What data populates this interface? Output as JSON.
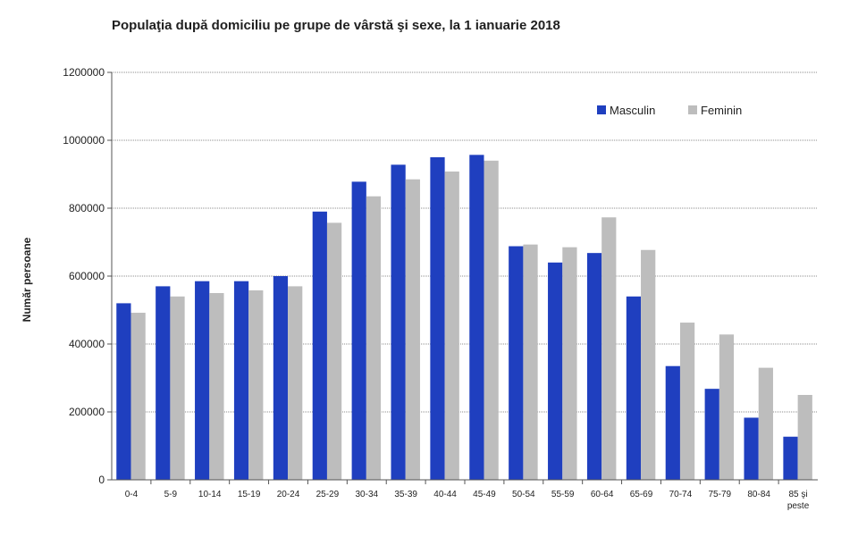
{
  "chart_data": {
    "type": "bar",
    "title": "Populaţia după domiciliu pe grupe de vârstă şi sexe, la 1 ianuarie 2018",
    "xlabel": "",
    "ylabel": "Număr persoane",
    "ylim": [
      0,
      1200000
    ],
    "yticks": [
      "0",
      "200000",
      "400000",
      "600000",
      "800000",
      "1000000",
      "1200000"
    ],
    "grid": true,
    "legend_position": "top-right",
    "categories": [
      "0-4",
      "5-9",
      "10-14",
      "15-19",
      "20-24",
      "25-29",
      "30-34",
      "35-39",
      "40-44",
      "45-49",
      "50-54",
      "55-59",
      "60-64",
      "65-69",
      "70-74",
      "75-79",
      "80-84",
      "85 şi peste"
    ],
    "series": [
      {
        "name": "Masculin",
        "color": "#1f3fbf",
        "values": [
          520000,
          570000,
          585000,
          585000,
          600000,
          790000,
          878000,
          928000,
          950000,
          957000,
          688000,
          640000,
          668000,
          540000,
          335000,
          268000,
          183000,
          127000
        ]
      },
      {
        "name": "Feminin",
        "color": "#bdbdbd",
        "values": [
          492000,
          540000,
          550000,
          558000,
          570000,
          757000,
          835000,
          885000,
          908000,
          940000,
          693000,
          685000,
          773000,
          677000,
          463000,
          428000,
          330000,
          250000
        ]
      }
    ]
  }
}
